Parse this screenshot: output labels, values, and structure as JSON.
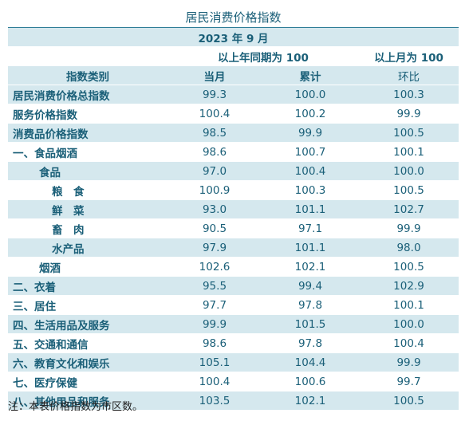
{
  "title": "居民消费价格指数",
  "period": "2023 年 9 月",
  "base_yoy": "以上年同期为 100",
  "base_mom": "以上月为 100",
  "columns": {
    "category": "指数类别",
    "current_month": "当月",
    "cumulative": "累计",
    "month_on_month": "环比"
  },
  "rows": [
    {
      "name": "居民消费价格总指数",
      "current": "99.3",
      "cumulative": "100.0",
      "mom": "100.3"
    },
    {
      "name": "服务价格指数",
      "current": "100.4",
      "cumulative": "100.2",
      "mom": "99.9"
    },
    {
      "name": "消费品价格指数",
      "current": "98.5",
      "cumulative": "99.9",
      "mom": "100.5"
    },
    {
      "name": "一、食品烟酒",
      "current": "98.6",
      "cumulative": "100.7",
      "mom": "100.1"
    },
    {
      "name": "食品",
      "current": "97.0",
      "cumulative": "100.4",
      "mom": "100.0"
    },
    {
      "name": "粮　食",
      "current": "100.9",
      "cumulative": "100.3",
      "mom": "100.5"
    },
    {
      "name": "鲜　菜",
      "current": "93.0",
      "cumulative": "101.1",
      "mom": "102.7"
    },
    {
      "name": "畜　肉",
      "current": "90.5",
      "cumulative": "97.1",
      "mom": "99.9"
    },
    {
      "name": "水产品",
      "current": "97.9",
      "cumulative": "101.1",
      "mom": "98.0"
    },
    {
      "name": "烟酒",
      "current": "102.6",
      "cumulative": "102.1",
      "mom": "100.5"
    },
    {
      "name": "二、衣着",
      "current": "95.5",
      "cumulative": "99.4",
      "mom": "102.9"
    },
    {
      "name": "三、居住",
      "current": "97.7",
      "cumulative": "97.8",
      "mom": "100.1"
    },
    {
      "name": "四、生活用品及服务",
      "current": "99.9",
      "cumulative": "101.5",
      "mom": "100.0"
    },
    {
      "name": "五、交通和通信",
      "current": "98.6",
      "cumulative": "97.8",
      "mom": "100.4"
    },
    {
      "name": "六、教育文化和娱乐",
      "current": "105.1",
      "cumulative": "104.4",
      "mom": "99.9"
    },
    {
      "name": "七、医疗保健",
      "current": "100.4",
      "cumulative": "100.6",
      "mom": "99.7"
    },
    {
      "name": "八、其他用品和服务",
      "current": "103.5",
      "cumulative": "102.1",
      "mom": "100.5"
    }
  ],
  "note": "注：本表价格指数为市区数。"
}
